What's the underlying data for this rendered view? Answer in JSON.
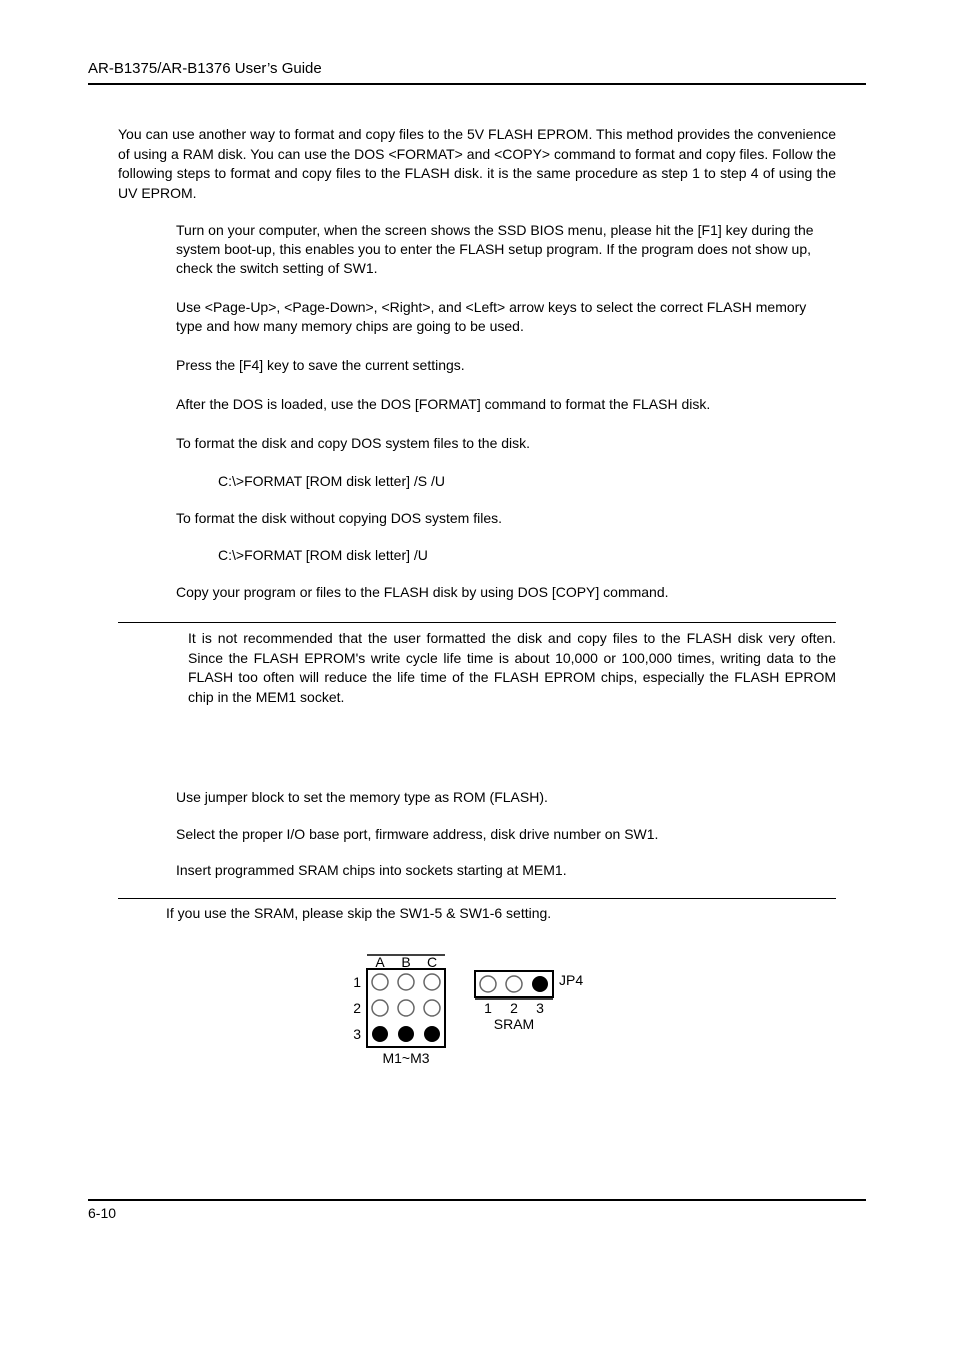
{
  "header": {
    "title": "AR-B1375/AR-B1376 User’s Guide"
  },
  "intro": "You can use another way to format and copy files to the 5V FLASH EPROM.  This method provides the convenience of using a RAM disk.  You can use the DOS <FORMAT> and <COPY> command to format and copy files.  Follow the following steps to format and copy files to the FLASH disk. it is the same procedure as step 1 to step 4 of using the UV EPROM.",
  "steps": [
    "Turn on your computer, when the screen shows the SSD BIOS menu, please hit the [F1] key during the system boot-up, this enables you to enter the FLASH setup program.  If the program does not show up, check the switch setting of SW1.",
    "Use <Page-Up>, <Page-Down>, <Right>, and <Left> arrow keys to select the correct FLASH memory type and how many memory chips are going to be used.",
    "Press the [F4] key to save the current settings.",
    "After the DOS is loaded, use the DOS [FORMAT] command to format the FLASH disk.",
    "To format the disk and copy DOS system files to the disk.",
    "C:\\>FORMAT [ROM disk letter] /S /U",
    "To format the disk without copying DOS system files.",
    "C:\\>FORMAT [ROM disk letter] /U",
    "Copy your program or files to the FLASH disk by using DOS [COPY] command."
  ],
  "step_is_cmd": [
    false,
    false,
    false,
    false,
    false,
    true,
    false,
    true,
    false
  ],
  "note1": "It is not recommended that the user formatted the disk and copy files to the FLASH disk very often. Since the FLASH EPROM's write cycle life time is about 10,000 or 100,000 times, writing data to the FLASH too often will reduce the life time of the FLASH EPROM chips, especially the FLASH EPROM chip in the MEM1 socket.",
  "steps2": [
    "Use jumper block to set the memory type as ROM (FLASH).",
    "Select the proper I/O base port, firmware address, disk drive number on SW1.",
    "Insert programmed SRAM chips into sockets starting at MEM1."
  ],
  "note2": "If you use the SRAM, please skip the SW1-5 & SW1-6 setting.",
  "diagram": {
    "grid": {
      "cols": [
        "A",
        "B",
        "C"
      ],
      "rows": [
        "1",
        "2",
        "3"
      ],
      "label_bottom": "M1~M3",
      "cell_filled": [
        [
          false,
          false,
          false
        ],
        [
          false,
          false,
          false
        ],
        [
          true,
          true,
          true
        ]
      ],
      "fill_color": "#000000",
      "empty_stroke": "#666666",
      "box_stroke": "#000000"
    },
    "jp4": {
      "label_right": "JP4",
      "label_below": "SRAM",
      "pins": [
        "1",
        "2",
        "3"
      ],
      "filled": [
        false,
        false,
        true
      ],
      "fill_color": "#000000",
      "empty_stroke": "#666666",
      "box_stroke": "#000000"
    }
  },
  "page_number": "6-10"
}
